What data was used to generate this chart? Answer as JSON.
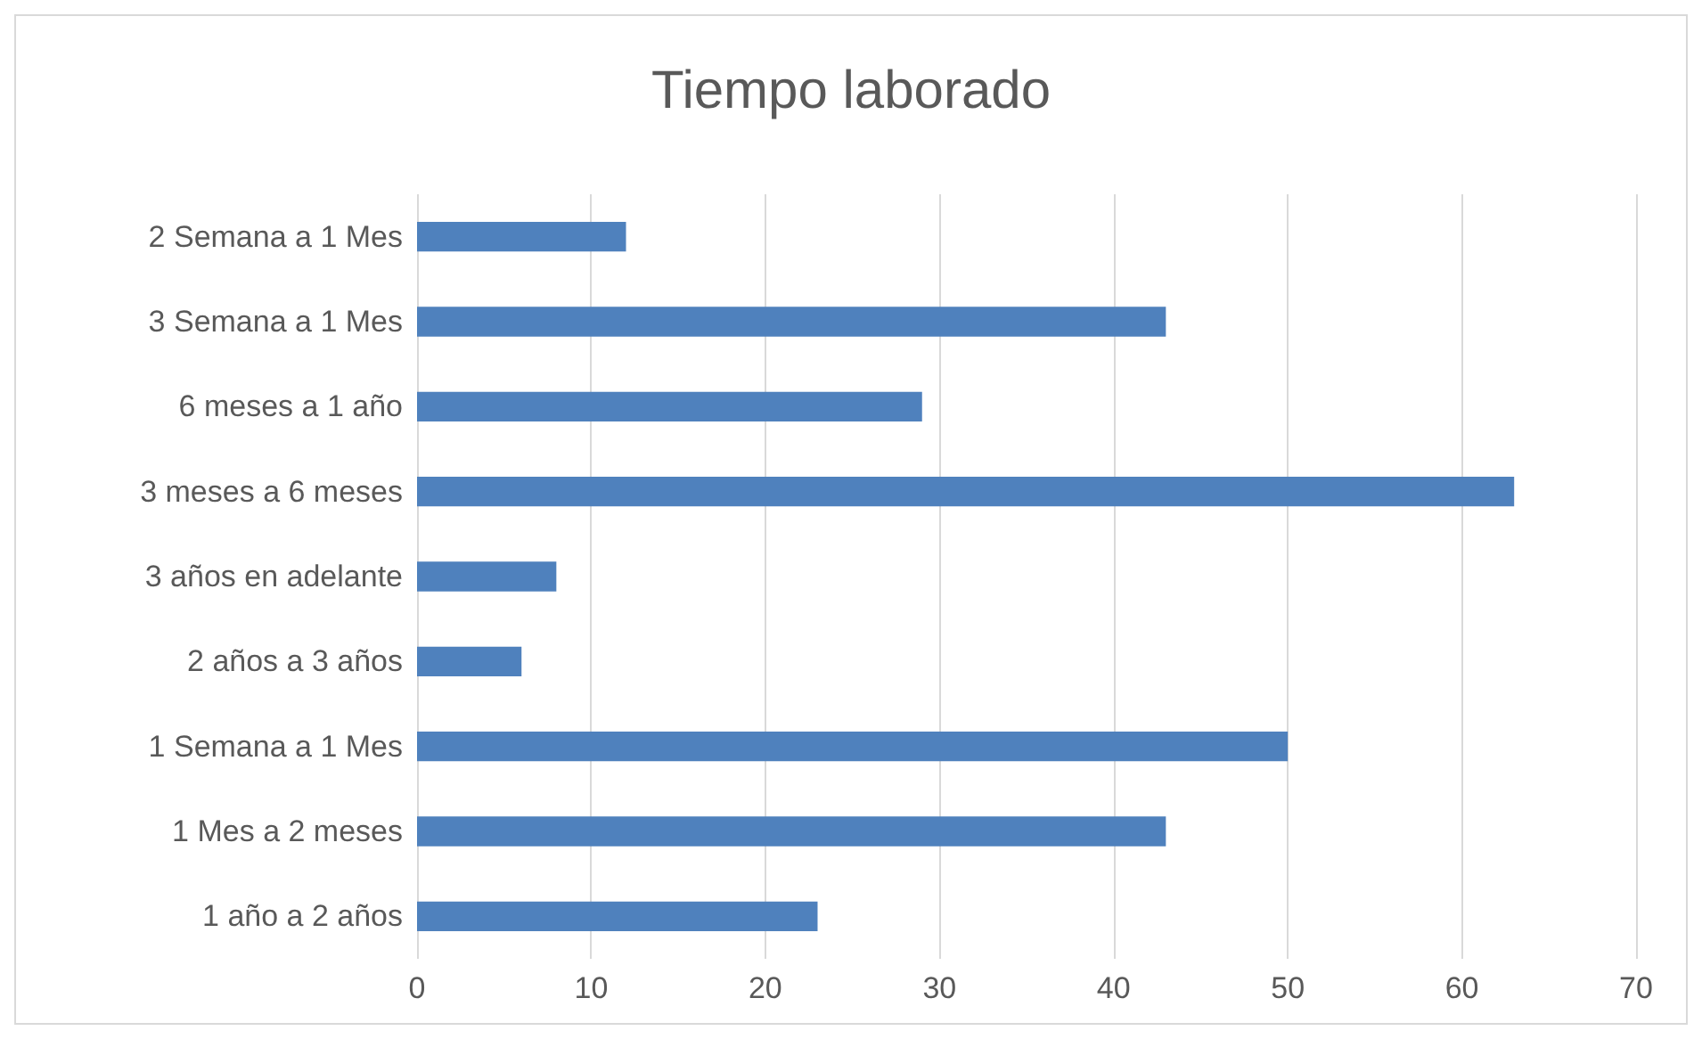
{
  "chart_data": {
    "type": "bar",
    "orientation": "horizontal",
    "title": "Tiempo laborado",
    "categories": [
      "2 Semana a 1 Mes",
      "3 Semana a 1 Mes",
      "6 meses a 1 año",
      "3 meses a 6 meses",
      "3 años en adelante",
      "2 años a 3 años",
      "1 Semana a 1 Mes",
      "1 Mes a 2 meses",
      "1 año a 2 años"
    ],
    "values": [
      12,
      43,
      29,
      63,
      8,
      6,
      50,
      43,
      23
    ],
    "color": "#4f81bd",
    "xlim": [
      0,
      70
    ],
    "xticks": [
      0,
      10,
      20,
      30,
      40,
      50,
      60,
      70
    ],
    "grid": "x"
  }
}
